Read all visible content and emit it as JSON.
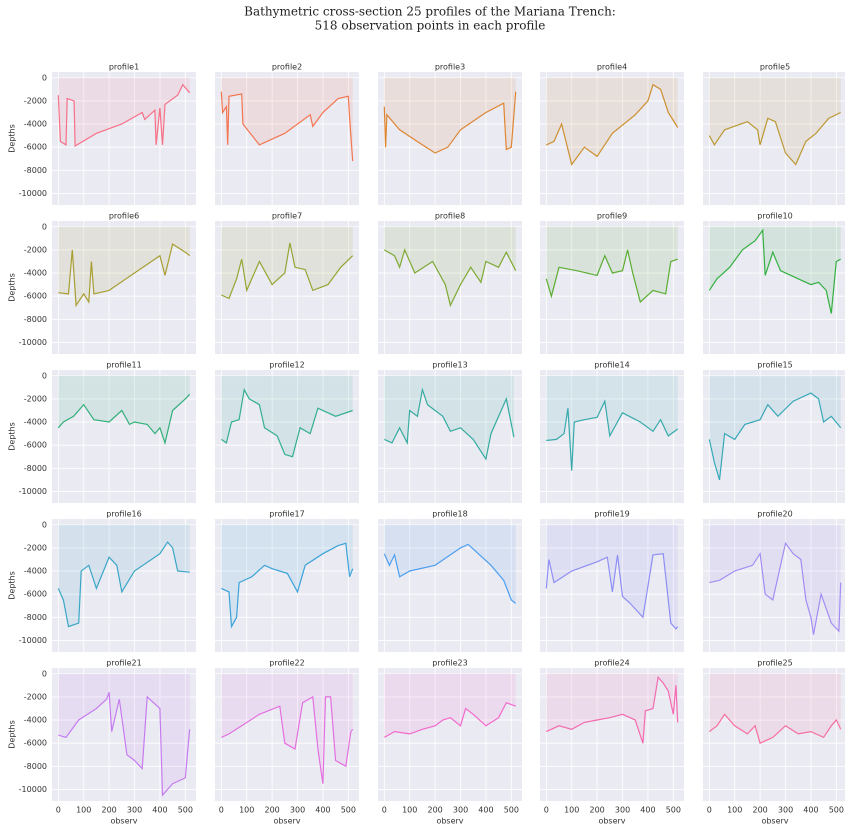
{
  "title": [
    "Bathymetric cross-section 25 profiles of the Mariana Trench:",
    "518 observation points in each profile"
  ],
  "axes": {
    "xlabel": "observ",
    "ylabel": "Depths",
    "xlim": [
      -25,
      542
    ],
    "ylim": [
      -11000,
      500
    ],
    "xticks": [
      0,
      100,
      200,
      300,
      400,
      500
    ],
    "yticks": [
      0,
      -2000,
      -4000,
      -6000,
      -8000,
      -10000
    ],
    "grid": true
  },
  "chart_data": [
    {
      "type": "line",
      "title": "profile1",
      "color": "#f77189",
      "x": [
        0,
        8,
        30,
        35,
        62,
        66,
        150,
        250,
        330,
        340,
        380,
        385,
        400,
        410,
        420,
        470,
        490,
        517
      ],
      "values": [
        -1500,
        -5500,
        -5800,
        -1800,
        -2000,
        -5900,
        -4800,
        -4000,
        -3000,
        -3600,
        -2800,
        -5800,
        -2600,
        -5800,
        -2300,
        -1500,
        -600,
        -1300
      ]
    },
    {
      "type": "line",
      "title": "profile2",
      "color": "#f37651",
      "x": [
        0,
        5,
        20,
        25,
        30,
        80,
        85,
        150,
        250,
        350,
        360,
        400,
        460,
        500,
        505,
        517
      ],
      "values": [
        -1200,
        -3000,
        -2500,
        -5800,
        -1600,
        -1400,
        -4000,
        -5800,
        -4800,
        -3200,
        -4200,
        -3000,
        -1800,
        -1600,
        -3500,
        -7200
      ]
    },
    {
      "type": "line",
      "title": "profile3",
      "color": "#de8532",
      "x": [
        0,
        5,
        10,
        60,
        150,
        200,
        250,
        300,
        400,
        470,
        480,
        500,
        510,
        517
      ],
      "values": [
        -2500,
        -6000,
        -3200,
        -4500,
        -5800,
        -6500,
        -6000,
        -4500,
        -3000,
        -2200,
        -6200,
        -6000,
        -3200,
        -1200
      ]
    },
    {
      "type": "line",
      "title": "profile4",
      "color": "#ce8f31",
      "x": [
        0,
        30,
        60,
        100,
        150,
        200,
        260,
        350,
        400,
        420,
        450,
        480,
        517
      ],
      "values": [
        -5800,
        -5500,
        -4000,
        -7500,
        -6000,
        -6800,
        -4800,
        -3200,
        -2000,
        -600,
        -1000,
        -3000,
        -4300
      ]
    },
    {
      "type": "line",
      "title": "profile5",
      "color": "#bb9832",
      "x": [
        0,
        20,
        60,
        150,
        190,
        200,
        230,
        260,
        300,
        340,
        380,
        420,
        470,
        517
      ],
      "values": [
        -5000,
        -5800,
        -4500,
        -3800,
        -4500,
        -5800,
        -3500,
        -3800,
        -6500,
        -7500,
        -5500,
        -4800,
        -3500,
        -3000
      ]
    },
    {
      "type": "line",
      "title": "profile6",
      "color": "#a89e31",
      "x": [
        0,
        40,
        55,
        70,
        100,
        120,
        130,
        140,
        200,
        300,
        400,
        420,
        450,
        500,
        517
      ],
      "values": [
        -5700,
        -5800,
        -2000,
        -6800,
        -5800,
        -6500,
        -3000,
        -5800,
        -5500,
        -4000,
        -2500,
        -4200,
        -1500,
        -2200,
        -2500
      ]
    },
    {
      "type": "line",
      "title": "profile7",
      "color": "#97a431",
      "x": [
        0,
        30,
        60,
        80,
        100,
        150,
        200,
        250,
        270,
        290,
        330,
        360,
        420,
        470,
        517
      ],
      "values": [
        -5900,
        -6200,
        -4500,
        -2800,
        -5500,
        -3000,
        -5000,
        -4000,
        -1400,
        -3500,
        -3700,
        -5500,
        -5000,
        -3500,
        -2500
      ]
    },
    {
      "type": "line",
      "title": "profile8",
      "color": "#7ea931",
      "x": [
        0,
        40,
        60,
        80,
        120,
        190,
        240,
        260,
        300,
        340,
        380,
        400,
        450,
        480,
        517
      ],
      "values": [
        -2000,
        -2500,
        -3500,
        -2000,
        -4000,
        -3000,
        -5000,
        -6800,
        -5000,
        -3500,
        -4800,
        -3000,
        -3500,
        -2200,
        -3800
      ]
    },
    {
      "type": "line",
      "title": "profile9",
      "color": "#5bae31",
      "x": [
        0,
        20,
        50,
        120,
        200,
        230,
        260,
        300,
        320,
        340,
        370,
        420,
        470,
        490,
        517
      ],
      "values": [
        -4500,
        -6000,
        -3500,
        -3800,
        -4200,
        -2500,
        -4000,
        -3800,
        -2000,
        -4000,
        -6500,
        -5500,
        -5800,
        -3000,
        -2800
      ]
    },
    {
      "type": "line",
      "title": "profile10",
      "color": "#33b040",
      "x": [
        0,
        30,
        80,
        130,
        180,
        210,
        220,
        250,
        280,
        350,
        400,
        430,
        460,
        480,
        500,
        517
      ],
      "values": [
        -5500,
        -4500,
        -3500,
        -2000,
        -1200,
        -300,
        -4200,
        -2200,
        -3800,
        -4500,
        -5000,
        -4800,
        -5500,
        -7500,
        -3000,
        -2800
      ]
    },
    {
      "type": "line",
      "title": "profile11",
      "color": "#33b07a",
      "x": [
        0,
        20,
        60,
        100,
        140,
        200,
        250,
        280,
        300,
        350,
        380,
        400,
        420,
        450,
        500,
        517
      ],
      "values": [
        -4500,
        -4000,
        -3500,
        -2500,
        -3800,
        -4000,
        -3000,
        -4200,
        -4000,
        -4200,
        -5000,
        -4500,
        -5800,
        -3000,
        -2000,
        -1600
      ]
    },
    {
      "type": "line",
      "title": "profile12",
      "color": "#34ae91",
      "x": [
        0,
        20,
        40,
        70,
        90,
        110,
        150,
        170,
        220,
        250,
        280,
        310,
        350,
        380,
        450,
        517
      ],
      "values": [
        -5500,
        -5800,
        -4000,
        -3800,
        -1200,
        -2000,
        -2500,
        -4500,
        -5200,
        -6800,
        -7000,
        -4500,
        -5000,
        -2800,
        -3500,
        -3000
      ]
    },
    {
      "type": "line",
      "title": "profile13",
      "color": "#35aca0",
      "x": [
        0,
        30,
        60,
        90,
        100,
        130,
        150,
        170,
        230,
        260,
        300,
        350,
        400,
        420,
        480,
        510
      ],
      "values": [
        -5500,
        -5800,
        -4500,
        -5800,
        -3000,
        -3500,
        -1200,
        -2500,
        -3500,
        -4800,
        -4500,
        -5500,
        -7200,
        -5000,
        -2000,
        -5300
      ]
    },
    {
      "type": "line",
      "title": "profile14",
      "color": "#36aaac",
      "x": [
        0,
        40,
        70,
        85,
        100,
        110,
        150,
        200,
        230,
        250,
        300,
        370,
        420,
        450,
        480,
        517
      ],
      "values": [
        -5600,
        -5500,
        -5000,
        -2800,
        -8200,
        -4000,
        -3800,
        -3600,
        -2200,
        -5200,
        -3200,
        -4000,
        -4800,
        -3800,
        -5200,
        -4600
      ]
    },
    {
      "type": "line",
      "title": "profile15",
      "color": "#37a8b8",
      "x": [
        0,
        20,
        40,
        60,
        100,
        140,
        200,
        230,
        270,
        330,
        400,
        430,
        450,
        480,
        517
      ],
      "values": [
        -5500,
        -7500,
        -9000,
        -5000,
        -5500,
        -4200,
        -3800,
        -2500,
        -3500,
        -2200,
        -1500,
        -2000,
        -4000,
        -3500,
        -4500
      ]
    },
    {
      "type": "line",
      "title": "profile16",
      "color": "#39a6c6",
      "x": [
        0,
        20,
        40,
        80,
        90,
        120,
        150,
        200,
        230,
        250,
        300,
        400,
        430,
        450,
        470,
        517
      ],
      "values": [
        -5500,
        -6500,
        -8800,
        -8500,
        -4000,
        -3500,
        -5500,
        -2800,
        -3500,
        -5800,
        -4000,
        -2500,
        -1500,
        -2000,
        -4000,
        -4100
      ]
    },
    {
      "type": "line",
      "title": "profile17",
      "color": "#3ba3d9",
      "x": [
        0,
        30,
        40,
        60,
        70,
        120,
        170,
        200,
        260,
        300,
        330,
        400,
        460,
        490,
        505,
        517
      ],
      "values": [
        -5500,
        -5800,
        -8800,
        -8000,
        -5000,
        -4500,
        -3500,
        -3800,
        -4200,
        -5800,
        -3500,
        -2500,
        -1800,
        -1600,
        -4500,
        -3800
      ]
    },
    {
      "type": "line",
      "title": "profile18",
      "color": "#4d9ff0",
      "x": [
        0,
        20,
        40,
        60,
        100,
        200,
        300,
        330,
        370,
        420,
        470,
        500,
        517
      ],
      "values": [
        -2500,
        -3500,
        -2600,
        -4500,
        -4000,
        -3500,
        -2000,
        -1700,
        -2500,
        -3500,
        -4800,
        -6500,
        -6800
      ]
    },
    {
      "type": "line",
      "title": "profile19",
      "color": "#8e8ff4",
      "x": [
        0,
        10,
        30,
        100,
        200,
        240,
        260,
        280,
        300,
        330,
        380,
        420,
        460,
        490,
        510,
        517
      ],
      "values": [
        -5500,
        -3000,
        -5000,
        -4000,
        -3200,
        -2800,
        -5800,
        -2600,
        -6200,
        -6800,
        -8000,
        -2600,
        -2500,
        -8500,
        -9000,
        -8800
      ]
    },
    {
      "type": "line",
      "title": "profile20",
      "color": "#a48cf4",
      "x": [
        0,
        40,
        100,
        170,
        200,
        220,
        250,
        300,
        330,
        360,
        380,
        400,
        410,
        440,
        480,
        510,
        517
      ],
      "values": [
        -5000,
        -4800,
        -4000,
        -3500,
        -2500,
        -6000,
        -6500,
        -1600,
        -2500,
        -3000,
        -6500,
        -8000,
        -9500,
        -6000,
        -8500,
        -9200,
        -5000
      ]
    },
    {
      "type": "line",
      "title": "profile21",
      "color": "#c67cf0",
      "x": [
        0,
        30,
        80,
        150,
        190,
        200,
        210,
        240,
        270,
        300,
        330,
        350,
        400,
        410,
        450,
        500,
        517
      ],
      "values": [
        -5300,
        -5500,
        -4000,
        -3000,
        -2200,
        -1600,
        -5000,
        -2200,
        -7000,
        -7500,
        -8200,
        -2000,
        -3000,
        -10500,
        -9500,
        -9000,
        -4800
      ]
    },
    {
      "type": "line",
      "title": "profile22",
      "color": "#e370e0",
      "x": [
        0,
        30,
        80,
        150,
        230,
        250,
        290,
        320,
        360,
        380,
        400,
        410,
        430,
        450,
        490,
        510,
        517
      ],
      "values": [
        -5500,
        -5200,
        -4500,
        -3500,
        -2800,
        -6000,
        -6500,
        -2500,
        -2000,
        -6500,
        -9500,
        -2000,
        -2000,
        -7500,
        -8000,
        -5000,
        -4800
      ]
    },
    {
      "type": "line",
      "title": "profile23",
      "color": "#f369cb",
      "x": [
        0,
        40,
        100,
        150,
        200,
        230,
        260,
        300,
        320,
        350,
        400,
        450,
        480,
        517
      ],
      "values": [
        -5500,
        -5000,
        -5200,
        -4800,
        -4500,
        -4000,
        -3800,
        -4500,
        -3000,
        -3500,
        -4500,
        -3800,
        -2500,
        -2800
      ]
    },
    {
      "type": "line",
      "title": "profile24",
      "color": "#f56ab0",
      "x": [
        0,
        50,
        100,
        150,
        200,
        250,
        300,
        350,
        380,
        390,
        420,
        440,
        460,
        480,
        500,
        510,
        517
      ],
      "values": [
        -5000,
        -4500,
        -4800,
        -4200,
        -4000,
        -3800,
        -3500,
        -4000,
        -6000,
        -3200,
        -3000,
        -300,
        -800,
        -1500,
        -3500,
        -1000,
        -4200
      ]
    },
    {
      "type": "line",
      "title": "profile25",
      "color": "#f66ea0",
      "x": [
        0,
        30,
        60,
        100,
        150,
        180,
        200,
        250,
        300,
        350,
        400,
        450,
        480,
        500,
        517
      ],
      "values": [
        -5000,
        -4500,
        -3500,
        -4500,
        -5200,
        -4500,
        -6000,
        -5500,
        -4500,
        -5200,
        -5000,
        -5500,
        -4500,
        -4000,
        -4800
      ]
    }
  ]
}
